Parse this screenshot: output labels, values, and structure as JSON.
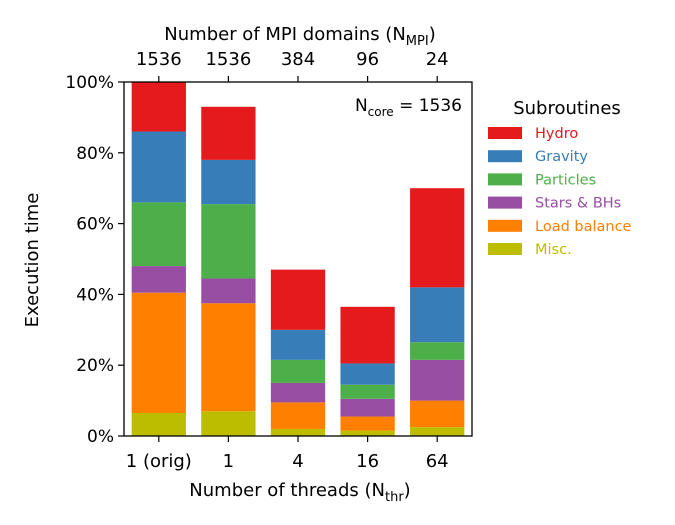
{
  "chart_data": {
    "type": "bar",
    "stacked": true,
    "categories": [
      "1 (orig)",
      "1",
      "4",
      "16",
      "64"
    ],
    "top_axis": {
      "label_main": "Number of MPI domains (N",
      "label_sub": "MPI",
      "label_close": ")",
      "ticks": [
        "1536",
        "1536",
        "384",
        "96",
        "24"
      ]
    },
    "xlabel_main": "Number of threads (N",
    "xlabel_sub": "thr",
    "xlabel_close": ")",
    "ylabel": "Execution time",
    "ylim": [
      0,
      100
    ],
    "yticks": [
      0,
      20,
      40,
      60,
      80,
      100
    ],
    "ytick_labels": [
      "0%",
      "20%",
      "40%",
      "60%",
      "80%",
      "100%"
    ],
    "annotation": {
      "main": "N",
      "sub": "core",
      "rest": " = 1536"
    },
    "legend_title": "Subroutines",
    "legend_position": "right, outside",
    "series": [
      {
        "name": "Misc.",
        "color": "#bdbd00",
        "values": [
          6.5,
          7,
          2,
          1.5,
          2.5
        ]
      },
      {
        "name": "Load balance",
        "color": "#ff7f00",
        "values": [
          34,
          30.5,
          7.5,
          4,
          7.5
        ]
      },
      {
        "name": "Stars & BHs",
        "color": "#984ea3",
        "values": [
          7.5,
          7,
          5.5,
          5,
          11.5
        ]
      },
      {
        "name": "Particles",
        "color": "#4daf4a",
        "values": [
          18,
          21,
          6.5,
          4,
          5
        ]
      },
      {
        "name": "Gravity",
        "color": "#377eb8",
        "values": [
          20,
          12.5,
          8.5,
          6,
          15.5
        ]
      },
      {
        "name": "Hydro",
        "color": "#e41a1c",
        "values": [
          14,
          15,
          17,
          16,
          28
        ]
      }
    ]
  }
}
